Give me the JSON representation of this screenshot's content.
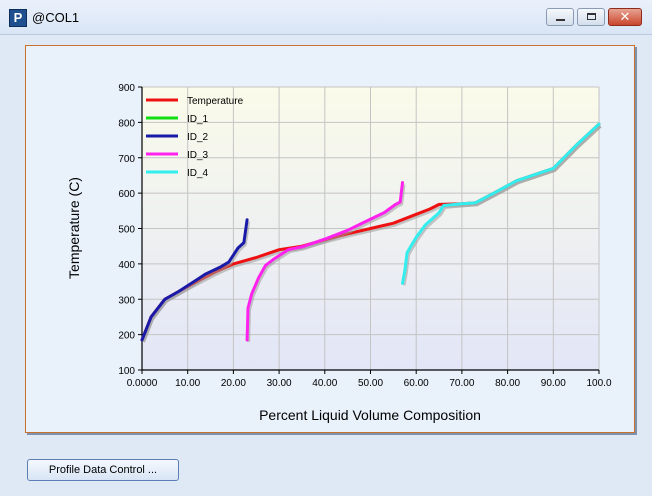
{
  "window": {
    "title": "@COL1",
    "app_icon": "P",
    "controls": {
      "close": "✕"
    }
  },
  "footer": {
    "profile_button": "Profile Data Control ..."
  },
  "colors": {
    "Temperature": "#ee1111",
    "ID_1": "#11dd11",
    "ID_2": "#1a1aa8",
    "ID_3": "#ff22ee",
    "ID_4": "#33eeee"
  },
  "chart_data": {
    "type": "line",
    "xlabel": "Percent Liquid Volume Composition",
    "ylabel": "Temperature (C)",
    "xlim": [
      0,
      100
    ],
    "ylim": [
      100,
      900
    ],
    "x_ticks": [
      "0.0000",
      "10.00",
      "20.00",
      "30.00",
      "40.00",
      "50.00",
      "60.00",
      "70.00",
      "80.00",
      "90.00",
      "100.0"
    ],
    "y_ticks": [
      "100",
      "200",
      "300",
      "400",
      "500",
      "600",
      "700",
      "800",
      "900"
    ],
    "grid": true,
    "legend_position": "top-left",
    "series": [
      {
        "name": "Temperature",
        "points": [
          [
            0,
            185
          ],
          [
            2,
            250
          ],
          [
            5,
            300
          ],
          [
            8,
            322
          ],
          [
            12,
            350
          ],
          [
            16,
            377
          ],
          [
            20,
            400
          ],
          [
            25,
            418
          ],
          [
            30,
            440
          ],
          [
            35,
            450
          ],
          [
            40,
            468
          ],
          [
            45,
            485
          ],
          [
            50,
            500
          ],
          [
            55,
            515
          ],
          [
            60,
            540
          ],
          [
            63,
            555
          ],
          [
            65,
            568
          ],
          [
            70,
            570
          ],
          [
            73,
            573
          ],
          [
            77,
            600
          ],
          [
            82,
            635
          ],
          [
            90,
            670
          ],
          [
            95,
            735
          ],
          [
            100,
            795
          ]
        ]
      },
      {
        "name": "ID_1",
        "points": []
      },
      {
        "name": "ID_2",
        "points": [
          [
            0,
            185
          ],
          [
            2,
            250
          ],
          [
            5,
            300
          ],
          [
            8,
            322
          ],
          [
            12,
            355
          ],
          [
            14,
            372
          ],
          [
            17,
            390
          ],
          [
            19,
            405
          ],
          [
            21,
            445
          ],
          [
            22.3,
            460
          ],
          [
            23,
            525
          ]
        ]
      },
      {
        "name": "ID_3",
        "points": [
          [
            23,
            185
          ],
          [
            23.2,
            275
          ],
          [
            24,
            315
          ],
          [
            25.5,
            360
          ],
          [
            27,
            395
          ],
          [
            29,
            415
          ],
          [
            32,
            440
          ],
          [
            35,
            448
          ],
          [
            40,
            470
          ],
          [
            45,
            495
          ],
          [
            49,
            520
          ],
          [
            53,
            545
          ],
          [
            55.5,
            568
          ],
          [
            56.5,
            575
          ],
          [
            57,
            630
          ]
        ]
      },
      {
        "name": "ID_4",
        "points": [
          [
            57,
            345
          ],
          [
            57.5,
            380
          ],
          [
            58,
            432
          ],
          [
            60,
            475
          ],
          [
            62,
            510
          ],
          [
            65,
            545
          ],
          [
            66,
            565
          ],
          [
            70,
            570
          ],
          [
            73,
            573
          ],
          [
            77,
            600
          ],
          [
            82,
            635
          ],
          [
            90,
            670
          ],
          [
            95,
            735
          ],
          [
            100,
            795
          ]
        ]
      }
    ]
  }
}
